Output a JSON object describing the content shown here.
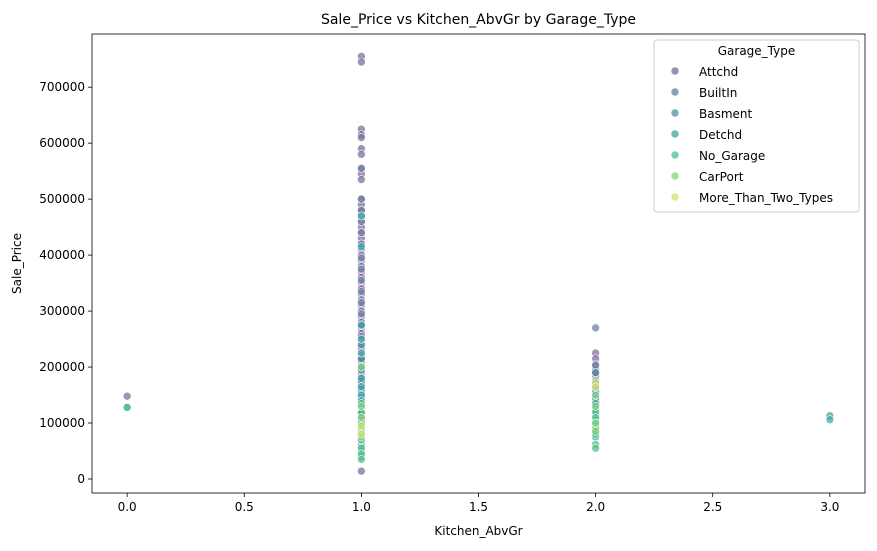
{
  "chart_data": {
    "type": "scatter",
    "title": "Sale_Price vs Kitchen_AbvGr by Garage_Type",
    "xlabel": "Kitchen_AbvGr",
    "ylabel": "Sale_Price",
    "xlim": [
      -0.15,
      3.15
    ],
    "ylim": [
      -25000,
      795000
    ],
    "xticks": [
      0.0,
      0.5,
      1.0,
      1.5,
      2.0,
      2.5,
      3.0
    ],
    "xtick_labels": [
      "0.0",
      "0.5",
      "1.0",
      "1.5",
      "2.0",
      "2.5",
      "3.0"
    ],
    "yticks": [
      0,
      100000,
      200000,
      300000,
      400000,
      500000,
      600000,
      700000
    ],
    "ytick_labels": [
      "0",
      "100000",
      "200000",
      "300000",
      "400000",
      "500000",
      "600000",
      "700000"
    ],
    "grid": false,
    "legend": {
      "title": "Garage_Type",
      "placement": "top-right"
    },
    "series": [
      {
        "name": "Attchd",
        "color": "#7a6b99",
        "points": [
          [
            0,
            148000
          ],
          [
            1,
            755000
          ],
          [
            1,
            745000
          ],
          [
            1,
            625000
          ],
          [
            1,
            615000
          ],
          [
            1,
            610000
          ],
          [
            1,
            590000
          ],
          [
            1,
            580000
          ],
          [
            1,
            555000
          ],
          [
            1,
            545000
          ],
          [
            1,
            535000
          ],
          [
            1,
            500000
          ],
          [
            1,
            490000
          ],
          [
            1,
            480000
          ],
          [
            1,
            470000
          ],
          [
            1,
            460000
          ],
          [
            1,
            450000
          ],
          [
            1,
            440000
          ],
          [
            1,
            430000
          ],
          [
            1,
            420000
          ],
          [
            1,
            410000
          ],
          [
            1,
            400000
          ],
          [
            1,
            390000
          ],
          [
            1,
            380000
          ],
          [
            1,
            370000
          ],
          [
            1,
            360000
          ],
          [
            1,
            350000
          ],
          [
            1,
            340000
          ],
          [
            1,
            330000
          ],
          [
            1,
            320000
          ],
          [
            1,
            310000
          ],
          [
            1,
            300000
          ],
          [
            1,
            290000
          ],
          [
            1,
            280000
          ],
          [
            1,
            270000
          ],
          [
            1,
            260000
          ],
          [
            1,
            250000
          ],
          [
            1,
            240000
          ],
          [
            1,
            230000
          ],
          [
            1,
            220000
          ],
          [
            1,
            210000
          ],
          [
            1,
            200000
          ],
          [
            1,
            190000
          ],
          [
            1,
            180000
          ],
          [
            1,
            170000
          ],
          [
            1,
            160000
          ],
          [
            1,
            150000
          ],
          [
            1,
            140000
          ],
          [
            1,
            130000
          ],
          [
            1,
            120000
          ],
          [
            1,
            110000
          ],
          [
            1,
            100000
          ],
          [
            1,
            14000
          ],
          [
            2,
            225000
          ],
          [
            2,
            215000
          ],
          [
            2,
            205000
          ],
          [
            2,
            195000
          ],
          [
            2,
            185000
          ],
          [
            2,
            175000
          ],
          [
            2,
            160000
          ],
          [
            2,
            150000
          ],
          [
            2,
            140000
          ]
        ]
      },
      {
        "name": "BuiltIn",
        "color": "#6c7ea3",
        "points": [
          [
            1,
            555000
          ],
          [
            1,
            500000
          ],
          [
            1,
            480000
          ],
          [
            1,
            460000
          ],
          [
            1,
            440000
          ],
          [
            1,
            420000
          ],
          [
            1,
            395000
          ],
          [
            1,
            375000
          ],
          [
            1,
            355000
          ],
          [
            1,
            335000
          ],
          [
            1,
            315000
          ],
          [
            1,
            295000
          ],
          [
            1,
            275000
          ],
          [
            1,
            255000
          ],
          [
            1,
            235000
          ],
          [
            1,
            215000
          ],
          [
            1,
            195000
          ],
          [
            1,
            175000
          ],
          [
            1,
            155000
          ],
          [
            2,
            270000
          ],
          [
            2,
            203000
          ],
          [
            2,
            190000
          ],
          [
            2,
            170000
          ]
        ]
      },
      {
        "name": "Basment",
        "color": "#4f8ea6",
        "points": [
          [
            1,
            275000
          ],
          [
            1,
            240000
          ],
          [
            1,
            215000
          ],
          [
            1,
            195000
          ],
          [
            1,
            175000
          ],
          [
            1,
            160000
          ],
          [
            1,
            145000
          ],
          [
            1,
            130000
          ],
          [
            1,
            118000
          ],
          [
            1,
            105000
          ],
          [
            2,
            190000
          ],
          [
            2,
            165000
          ],
          [
            2,
            150000
          ],
          [
            2,
            140000
          ],
          [
            2,
            130000
          ]
        ]
      },
      {
        "name": "Detchd",
        "color": "#3ea5a2",
        "points": [
          [
            0,
            128000
          ],
          [
            1,
            470000
          ],
          [
            1,
            415000
          ],
          [
            1,
            275000
          ],
          [
            1,
            250000
          ],
          [
            1,
            225000
          ],
          [
            1,
            200000
          ],
          [
            1,
            180000
          ],
          [
            1,
            165000
          ],
          [
            1,
            150000
          ],
          [
            1,
            140000
          ],
          [
            1,
            130000
          ],
          [
            1,
            120000
          ],
          [
            1,
            110000
          ],
          [
            1,
            100000
          ],
          [
            1,
            90000
          ],
          [
            1,
            80000
          ],
          [
            1,
            70000
          ],
          [
            1,
            60000
          ],
          [
            1,
            50000
          ],
          [
            1,
            40000
          ],
          [
            2,
            155000
          ],
          [
            2,
            145000
          ],
          [
            2,
            135000
          ],
          [
            2,
            125000
          ],
          [
            2,
            115000
          ],
          [
            2,
            105000
          ],
          [
            2,
            95000
          ],
          [
            2,
            85000
          ],
          [
            2,
            75000
          ],
          [
            3,
            113000
          ],
          [
            3,
            106000
          ]
        ]
      },
      {
        "name": "No_Garage",
        "color": "#4fbf88",
        "points": [
          [
            0,
            128000
          ],
          [
            1,
            135000
          ],
          [
            1,
            118000
          ],
          [
            1,
            100000
          ],
          [
            1,
            85000
          ],
          [
            1,
            70000
          ],
          [
            1,
            55000
          ],
          [
            1,
            45000
          ],
          [
            1,
            35000
          ],
          [
            2,
            120000
          ],
          [
            2,
            110000
          ],
          [
            2,
            100000
          ],
          [
            2,
            90000
          ],
          [
            2,
            80000
          ],
          [
            2,
            62000
          ],
          [
            2,
            55000
          ]
        ]
      },
      {
        "name": "CarPort",
        "color": "#89d080",
        "points": [
          [
            1,
            200000
          ],
          [
            1,
            130000
          ],
          [
            1,
            110000
          ],
          [
            1,
            90000
          ],
          [
            1,
            75000
          ],
          [
            2,
            150000
          ],
          [
            2,
            130000
          ],
          [
            2,
            100000
          ],
          [
            2,
            85000
          ]
        ]
      },
      {
        "name": "More_Than_Two_Types",
        "color": "#cfe071",
        "points": [
          [
            1,
            95000
          ],
          [
            1,
            80000
          ],
          [
            2,
            172000
          ],
          [
            2,
            165000
          ]
        ]
      }
    ]
  }
}
